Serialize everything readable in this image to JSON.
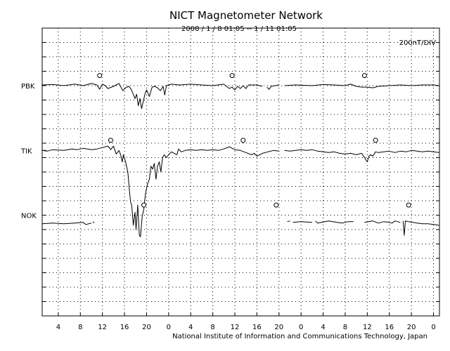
{
  "chart_data": {
    "type": "line",
    "title": "NICT Magnetometer Network",
    "subtitle": "2008 / 1 / 8   01:05 --  1 / 11   01:05",
    "scale_label": "200nT/DIV",
    "footer": "National Institute of Information and Communications Technology, Japan",
    "x_tick_labels": [
      "4",
      "8",
      "12",
      "16",
      "20",
      "0",
      "4",
      "8",
      "12",
      "16",
      "20",
      "0",
      "4",
      "8",
      "12",
      "16",
      "20",
      "0"
    ],
    "x_unit": "hours since 2008/1/8 00:00",
    "x_range": [
      1.083,
      73.083
    ],
    "y_unit": "nT (relative)",
    "y_range": [
      -1200,
      800
    ],
    "grid": true,
    "series": [
      {
        "name": "PBK",
        "baseline": 400,
        "midnight_marker_x": [
          11.5,
          35.5,
          59.5
        ],
        "segments": [
          [
            [
              1.1,
              5
            ],
            [
              3,
              8
            ],
            [
              5,
              0
            ],
            [
              7,
              10
            ],
            [
              8.5,
              0
            ],
            [
              10,
              15
            ],
            [
              11,
              5
            ],
            [
              11.5,
              -25
            ],
            [
              12,
              10
            ],
            [
              12.5,
              0
            ],
            [
              13,
              -20
            ],
            [
              14,
              -5
            ],
            [
              15,
              15
            ],
            [
              15.7,
              -35
            ],
            [
              16.2,
              -15
            ],
            [
              16.8,
              -5
            ],
            [
              17.2,
              -25
            ],
            [
              17.6,
              -60
            ],
            [
              17.9,
              -90
            ],
            [
              18.2,
              -60
            ],
            [
              18.5,
              -140
            ],
            [
              18.8,
              -90
            ],
            [
              19.1,
              -160
            ],
            [
              19.4,
              -110
            ],
            [
              19.7,
              -60
            ],
            [
              20,
              -30
            ],
            [
              20.5,
              -75
            ],
            [
              21,
              -10
            ],
            [
              21.5,
              -5
            ],
            [
              22,
              -15
            ],
            [
              22.5,
              -35
            ],
            [
              23,
              -5
            ],
            [
              23.3,
              -65
            ],
            [
              23.6,
              0
            ],
            [
              24.5,
              10
            ],
            [
              26,
              5
            ],
            [
              28,
              10
            ],
            [
              30,
              5
            ],
            [
              32,
              0
            ],
            [
              34,
              10
            ],
            [
              35,
              -20
            ],
            [
              35.5,
              -10
            ],
            [
              36,
              -30
            ],
            [
              36.5,
              -5
            ],
            [
              37,
              -20
            ],
            [
              37.5,
              0
            ],
            [
              38,
              -20
            ],
            [
              38.5,
              5
            ],
            [
              40,
              5
            ],
            [
              41,
              -5
            ]
          ],
          [
            [
              41.8,
              -10
            ],
            [
              42.2,
              -25
            ],
            [
              42.6,
              -5
            ],
            [
              44,
              5
            ]
          ],
          [
            [
              45,
              0
            ],
            [
              47,
              5
            ],
            [
              50,
              0
            ],
            [
              52,
              8
            ],
            [
              54,
              5
            ],
            [
              56,
              0
            ],
            [
              57,
              10
            ],
            [
              58,
              -5
            ],
            [
              59,
              -10
            ],
            [
              60,
              -10
            ],
            [
              61,
              -15
            ],
            [
              62,
              -5
            ],
            [
              64,
              0
            ],
            [
              66,
              5
            ],
            [
              68,
              0
            ],
            [
              70,
              5
            ],
            [
              72,
              5
            ],
            [
              73,
              0
            ]
          ]
        ]
      },
      {
        "name": "TIK",
        "baseline": -50,
        "midnight_marker_x": [
          13.5,
          37.5,
          61.5
        ],
        "segments": [
          [
            [
              1.1,
              0
            ],
            [
              2,
              -5
            ],
            [
              3,
              5
            ],
            [
              5,
              0
            ],
            [
              6.5,
              10
            ],
            [
              7.5,
              5
            ],
            [
              8.5,
              15
            ],
            [
              10,
              5
            ],
            [
              11,
              10
            ],
            [
              12,
              20
            ],
            [
              13,
              30
            ],
            [
              13.5,
              5
            ],
            [
              14,
              30
            ],
            [
              14.5,
              -25
            ],
            [
              15,
              0
            ],
            [
              15.3,
              -30
            ],
            [
              15.6,
              -80
            ],
            [
              15.8,
              -30
            ],
            [
              16.2,
              -80
            ],
            [
              16.6,
              -150
            ],
            [
              16.9,
              -280
            ],
            [
              17.1,
              -360
            ],
            [
              17.3,
              -380
            ],
            [
              17.6,
              -520
            ],
            [
              17.9,
              -430
            ],
            [
              18.1,
              -550
            ],
            [
              18.4,
              -380
            ],
            [
              18.7,
              -590
            ],
            [
              18.9,
              -600
            ],
            [
              19.2,
              -460
            ],
            [
              19.5,
              -410
            ],
            [
              19.8,
              -300
            ],
            [
              20.2,
              -230
            ],
            [
              20.5,
              -200
            ],
            [
              20.8,
              -110
            ],
            [
              21.1,
              -130
            ],
            [
              21.4,
              -90
            ],
            [
              21.7,
              -200
            ],
            [
              22,
              -110
            ],
            [
              22.3,
              -80
            ],
            [
              22.6,
              -150
            ],
            [
              22.9,
              -50
            ],
            [
              23.2,
              -30
            ],
            [
              23.6,
              -50
            ],
            [
              24,
              -30
            ],
            [
              24.5,
              -10
            ],
            [
              25,
              -20
            ],
            [
              25.5,
              -30
            ],
            [
              25.8,
              10
            ],
            [
              26.3,
              -10
            ],
            [
              27,
              0
            ],
            [
              28,
              5
            ],
            [
              29,
              0
            ],
            [
              30,
              5
            ],
            [
              31,
              0
            ],
            [
              32,
              5
            ],
            [
              33,
              0
            ],
            [
              34,
              10
            ],
            [
              35,
              25
            ],
            [
              36,
              5
            ],
            [
              37,
              0
            ],
            [
              38,
              -15
            ],
            [
              39,
              -30
            ],
            [
              39.5,
              -20
            ],
            [
              40,
              -40
            ],
            [
              40.5,
              -30
            ],
            [
              41,
              -20
            ],
            [
              42,
              -10
            ],
            [
              43,
              0
            ],
            [
              44,
              -5
            ]
          ],
          [
            [
              45,
              0
            ],
            [
              46,
              -5
            ],
            [
              47,
              0
            ],
            [
              48,
              5
            ],
            [
              49,
              0
            ],
            [
              50,
              5
            ],
            [
              51,
              -5
            ],
            [
              52,
              -10
            ],
            [
              53,
              -15
            ],
            [
              54,
              -10
            ],
            [
              55,
              -20
            ],
            [
              56,
              -25
            ],
            [
              57,
              -20
            ],
            [
              58,
              -30
            ],
            [
              59,
              -20
            ],
            [
              59.5,
              -50
            ],
            [
              60,
              -80
            ],
            [
              60.3,
              -40
            ],
            [
              60.6,
              -30
            ],
            [
              61,
              -40
            ],
            [
              61.5,
              -10
            ],
            [
              62,
              -15
            ],
            [
              63,
              -10
            ],
            [
              64,
              -5
            ],
            [
              65,
              -15
            ],
            [
              66,
              -5
            ],
            [
              67,
              -10
            ],
            [
              68,
              0
            ],
            [
              69,
              -5
            ],
            [
              70,
              -10
            ],
            [
              71,
              -5
            ],
            [
              72,
              -10
            ],
            [
              73,
              -15
            ]
          ]
        ]
      },
      {
        "name": "NOK",
        "baseline": -500,
        "midnight_marker_x": [
          19.5,
          43.5,
          67.5
        ],
        "segments": [
          [
            [
              1.1,
              -60
            ],
            [
              3,
              -55
            ],
            [
              5,
              -60
            ],
            [
              7,
              -55
            ],
            [
              8.5,
              -50
            ],
            [
              9,
              -65
            ],
            [
              10,
              -55
            ]
          ],
          [
            [
              10.3,
              -45
            ],
            [
              10.5,
              -55
            ]
          ],
          [
            [
              45.5,
              -45
            ],
            [
              46,
              -40
            ]
          ],
          [
            [
              46.5,
              -50
            ],
            [
              48,
              -45
            ],
            [
              50,
              -50
            ]
          ],
          [
            [
              50.6,
              -40
            ],
            [
              51,
              -55
            ],
            [
              53,
              -40
            ],
            [
              54.5,
              -50
            ],
            [
              55.5,
              -55
            ],
            [
              56.5,
              -45
            ],
            [
              57.5,
              -45
            ]
          ],
          [
            [
              59.5,
              -50
            ],
            [
              61,
              -40
            ],
            [
              62,
              -55
            ],
            [
              63,
              -45
            ],
            [
              64,
              -50
            ],
            [
              64.5,
              -55
            ],
            [
              65,
              -40
            ],
            [
              66,
              -50
            ]
          ],
          [
            [
              66.5,
              -40
            ],
            [
              66.7,
              -140
            ],
            [
              66.9,
              -40
            ],
            [
              67.5,
              -45
            ],
            [
              69,
              -55
            ],
            [
              70,
              -60
            ],
            [
              71,
              -60
            ],
            [
              72,
              -65
            ],
            [
              73,
              -70
            ]
          ]
        ]
      }
    ]
  }
}
